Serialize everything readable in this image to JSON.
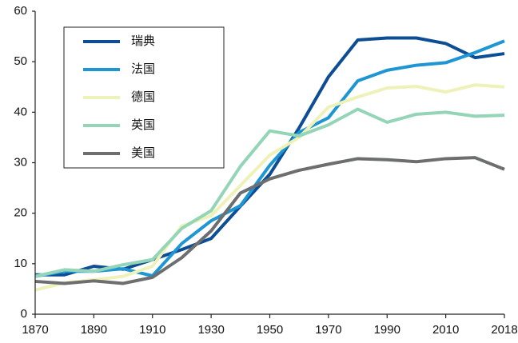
{
  "chart_data": {
    "type": "line",
    "categories": [
      "1870",
      null,
      "1890",
      null,
      "1910",
      null,
      "1930",
      null,
      "1950",
      null,
      "1970",
      null,
      "1990",
      null,
      "2010",
      null,
      "2018"
    ],
    "series": [
      {
        "name": "瑞典",
        "color": "#0c4d94",
        "values": [
          7.8,
          7.8,
          9.5,
          8.9,
          10.8,
          12.8,
          15,
          21.4,
          27.7,
          36.9,
          47,
          54.3,
          54.7,
          54.7,
          53.6,
          50.8,
          51.6
        ]
      },
      {
        "name": "法国",
        "color": "#1e96d3",
        "values": [
          7.5,
          8.5,
          8.5,
          9,
          7.6,
          14,
          18.5,
          21.5,
          29.5,
          36,
          38.9,
          46.2,
          48.3,
          49.3,
          49.8,
          51.8,
          54.1
        ]
      },
      {
        "name": "德国",
        "color": "#eef2b8",
        "values": [
          4.8,
          6.2,
          6.8,
          7.5,
          9.5,
          17.5,
          19.5,
          25.5,
          31.5,
          35,
          41,
          43,
          44.8,
          45.1,
          44,
          45.4,
          45
        ]
      },
      {
        "name": "英国",
        "color": "#93d5b6",
        "values": [
          7.5,
          8.8,
          8.5,
          9.8,
          10.8,
          17,
          20.5,
          29.3,
          36.3,
          35.3,
          37.5,
          40.6,
          38,
          39.6,
          40,
          39.2,
          39.4
        ]
      },
      {
        "name": "美国",
        "color": "#6d6e70",
        "values": [
          6.5,
          6.1,
          6.6,
          6.1,
          7.3,
          11.2,
          16.5,
          24,
          26.8,
          28.5,
          29.7,
          30.8,
          30.6,
          30.2,
          30.8,
          31,
          28.7
        ]
      }
    ],
    "ylim": [
      0,
      60
    ],
    "yticks": [
      0,
      10,
      20,
      30,
      40,
      50,
      60
    ],
    "legend": "upper left"
  }
}
